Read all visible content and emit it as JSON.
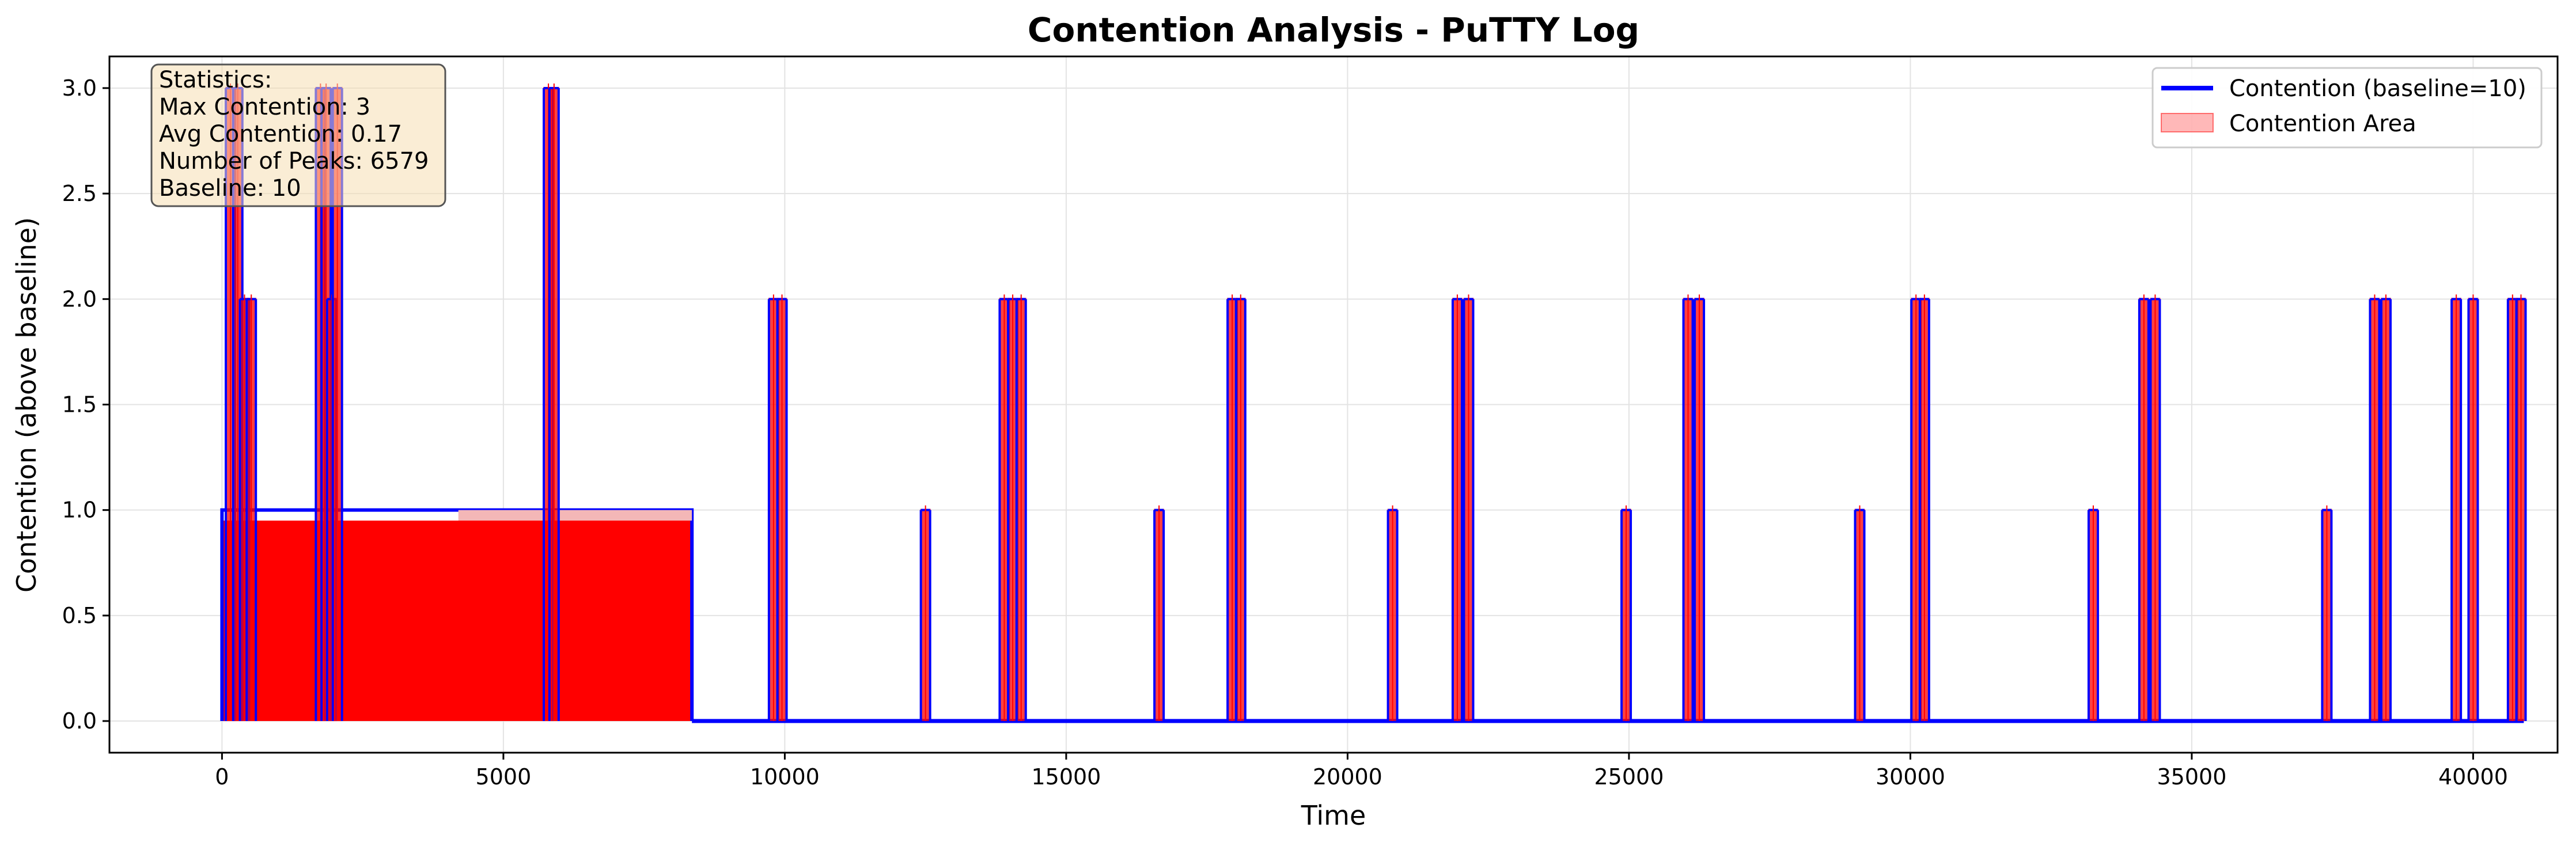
{
  "chart_data": {
    "type": "line",
    "title": "Contention Analysis - PuTTY Log",
    "xlabel": "Time",
    "ylabel": "Contention (above baseline)",
    "xlim": [
      -2000,
      41500
    ],
    "ylim": [
      -0.15,
      3.15
    ],
    "x_ticks": [
      0,
      5000,
      10000,
      15000,
      20000,
      25000,
      30000,
      35000,
      40000
    ],
    "y_ticks": [
      0.0,
      0.5,
      1.0,
      1.5,
      2.0,
      2.5,
      3.0
    ],
    "y_tick_labels": [
      "0.0",
      "0.5",
      "1.0",
      "1.5",
      "2.0",
      "2.5",
      "3.0"
    ],
    "grid": true,
    "legend_position": "top-right",
    "series": [
      {
        "name": "Contention (baseline=10)",
        "style": "line",
        "color": "#0000ff"
      },
      {
        "name": "Contention Area",
        "style": "area",
        "color": "#ff0000"
      }
    ],
    "dense_region": {
      "x_range": [
        0,
        8350
      ],
      "value": 1
    },
    "spikes": [
      {
        "x": 150,
        "value": 3
      },
      {
        "x": 280,
        "value": 3
      },
      {
        "x": 400,
        "value": 2
      },
      {
        "x": 520,
        "value": 2
      },
      {
        "x": 1750,
        "value": 3
      },
      {
        "x": 1850,
        "value": 3
      },
      {
        "x": 1950,
        "value": 2
      },
      {
        "x": 2050,
        "value": 3
      },
      {
        "x": 5800,
        "value": 3
      },
      {
        "x": 5900,
        "value": 3
      },
      {
        "x": 9800,
        "value": 2
      },
      {
        "x": 9950,
        "value": 2
      },
      {
        "x": 12500,
        "value": 1
      },
      {
        "x": 13900,
        "value": 2
      },
      {
        "x": 14050,
        "value": 2
      },
      {
        "x": 14200,
        "value": 2
      },
      {
        "x": 16650,
        "value": 1
      },
      {
        "x": 17950,
        "value": 2
      },
      {
        "x": 18100,
        "value": 2
      },
      {
        "x": 20800,
        "value": 1
      },
      {
        "x": 21950,
        "value": 2
      },
      {
        "x": 22150,
        "value": 2
      },
      {
        "x": 24950,
        "value": 1
      },
      {
        "x": 26050,
        "value": 2
      },
      {
        "x": 26250,
        "value": 2
      },
      {
        "x": 29100,
        "value": 1
      },
      {
        "x": 30100,
        "value": 2
      },
      {
        "x": 30250,
        "value": 2
      },
      {
        "x": 33250,
        "value": 1
      },
      {
        "x": 34150,
        "value": 2
      },
      {
        "x": 34350,
        "value": 2
      },
      {
        "x": 37400,
        "value": 1
      },
      {
        "x": 38250,
        "value": 2
      },
      {
        "x": 38450,
        "value": 2
      },
      {
        "x": 39700,
        "value": 2
      },
      {
        "x": 40000,
        "value": 2
      },
      {
        "x": 40700,
        "value": 2
      },
      {
        "x": 40850,
        "value": 2
      }
    ],
    "baseline_end": 40900
  },
  "stats_box": {
    "title": "Statistics:",
    "lines": [
      "Max Contention: 3",
      "Avg Contention: 0.17",
      "Number of Peaks: 6579",
      "Baseline: 10"
    ]
  }
}
